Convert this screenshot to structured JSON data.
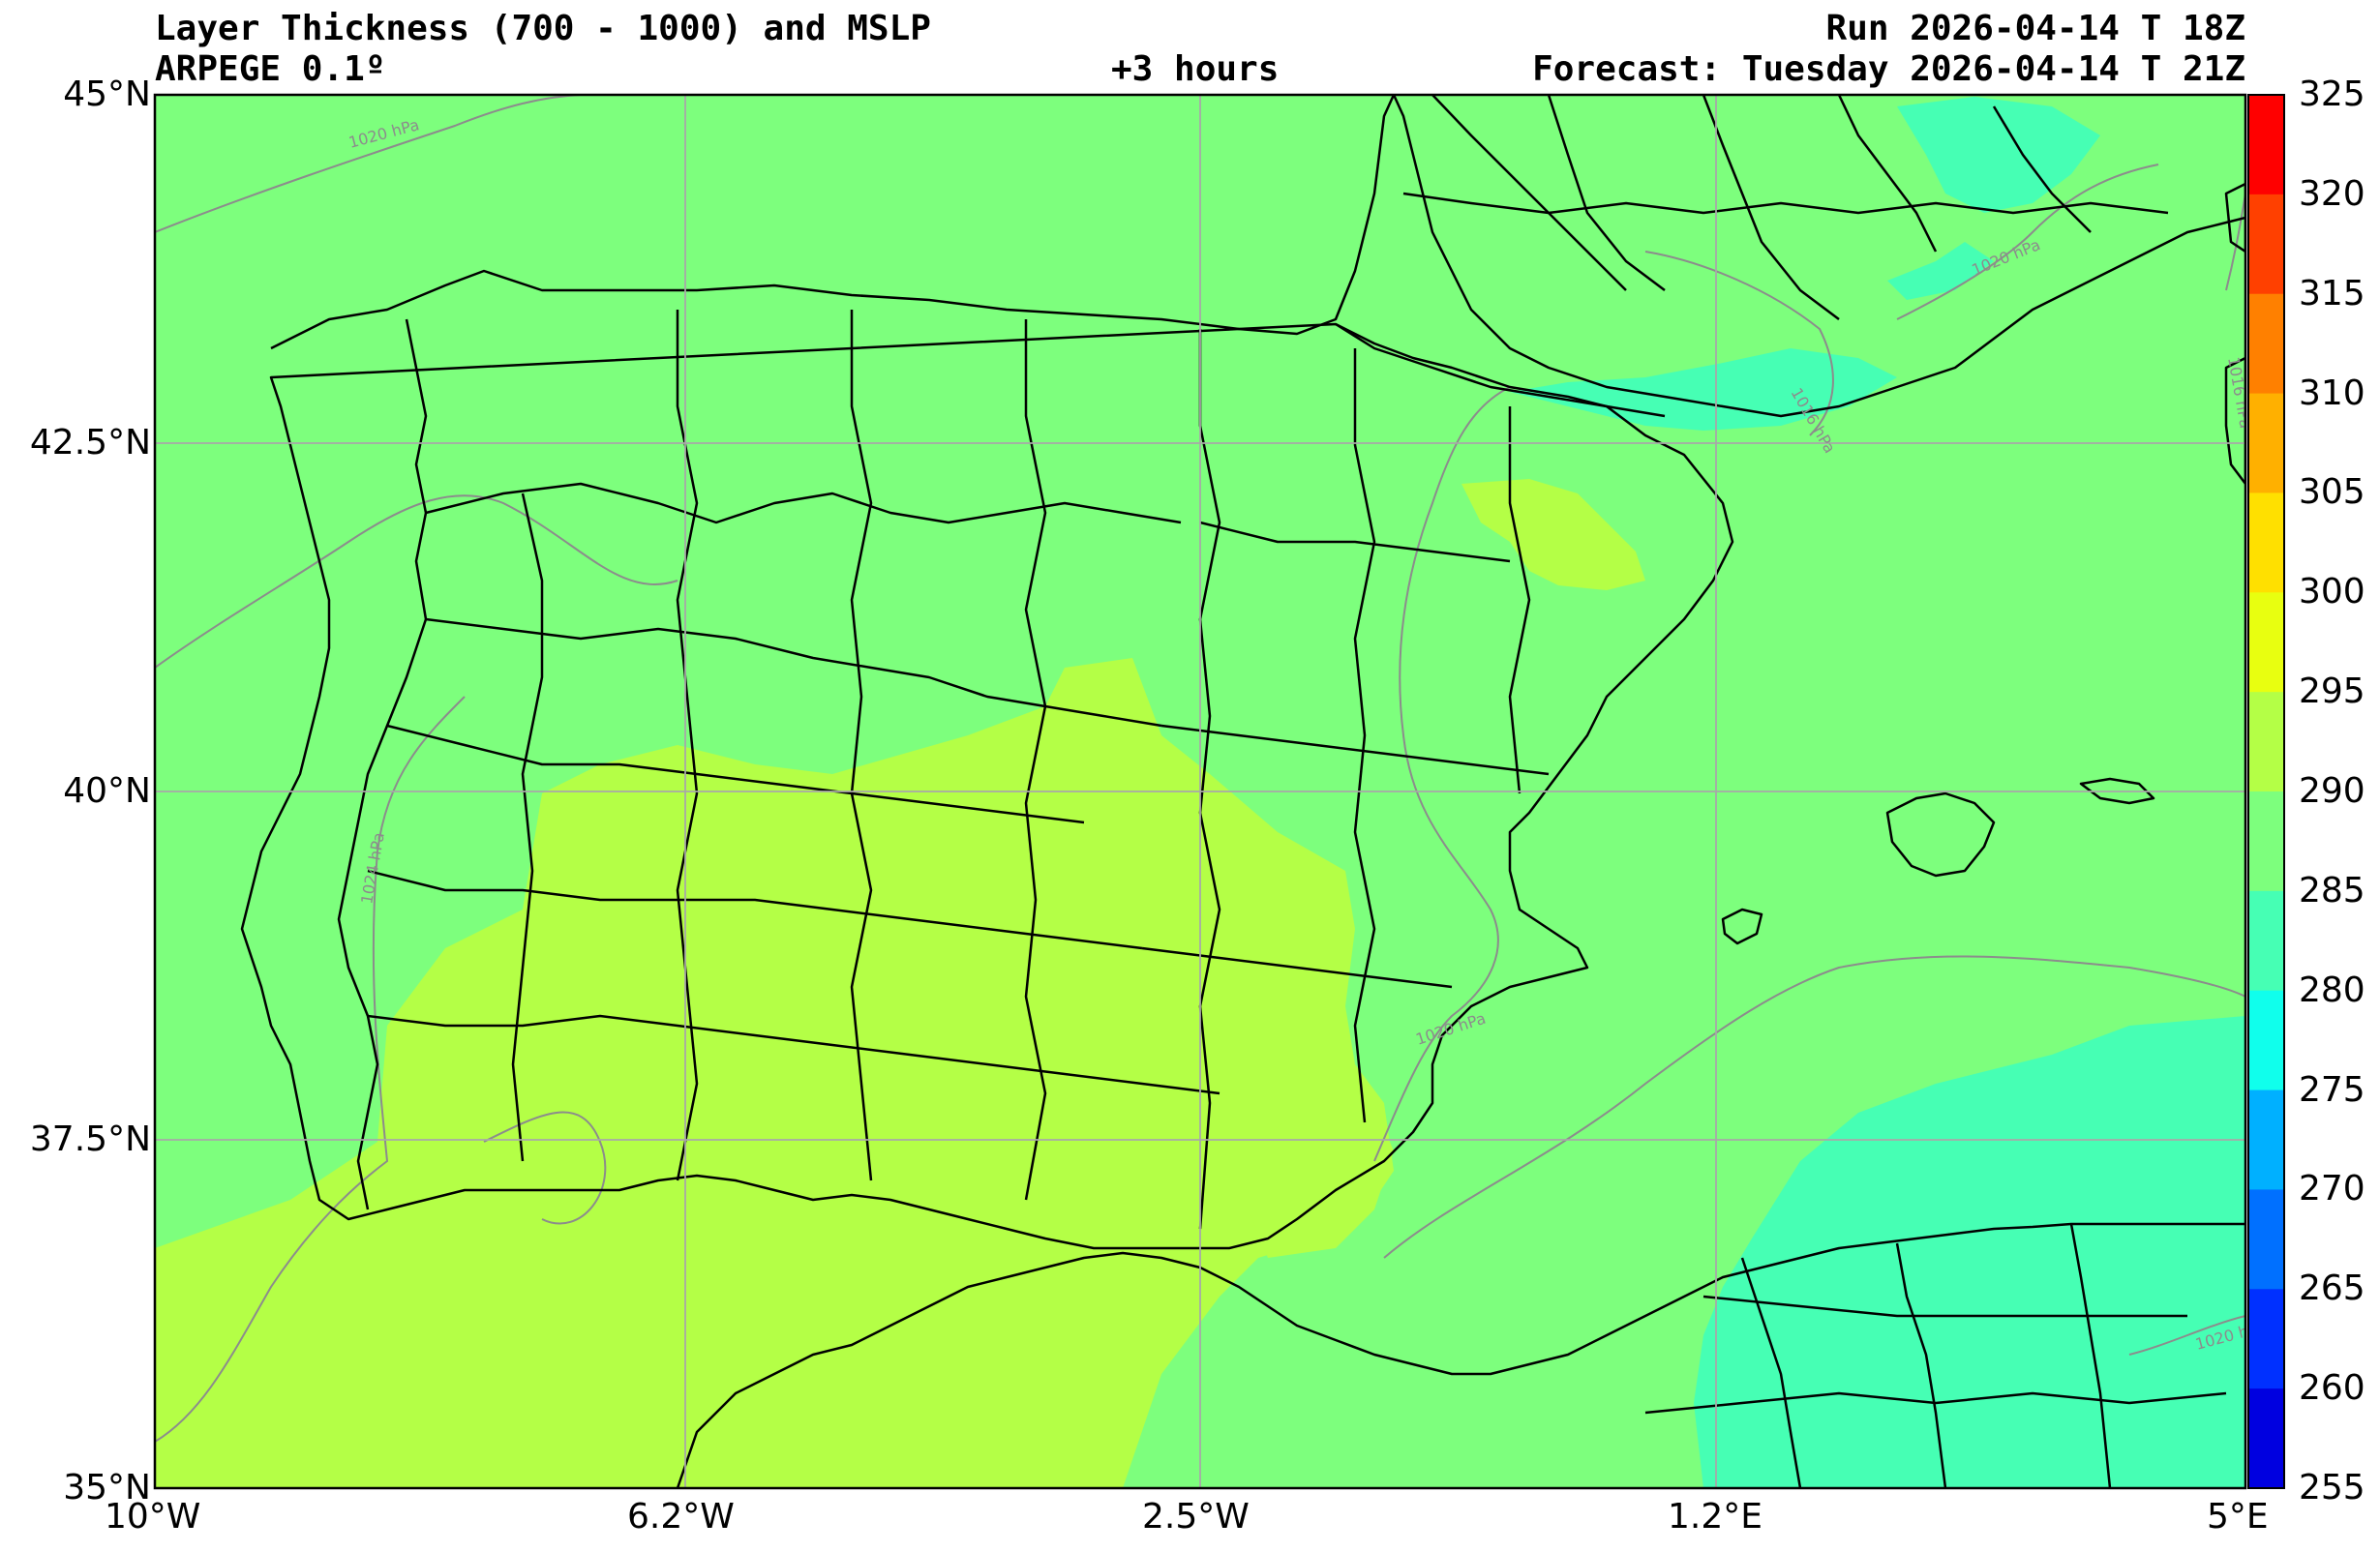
{
  "header": {
    "title": "Layer Thickness (700 - 1000) and MSLP",
    "model": "ARPEGE 0.1º",
    "lead_time": "+3 hours",
    "run": "Run 2026-04-14 T 18Z",
    "forecast": "Forecast: Tuesday 2026-04-14 T 21Z"
  },
  "axes": {
    "lat_labels": [
      "45°N",
      "42.5°N",
      "40°N",
      "37.5°N",
      "35°N"
    ],
    "lon_labels": [
      "10°W",
      "6.2°W",
      "2.5°W",
      "1.2°E",
      "5°E"
    ]
  },
  "colorbar": {
    "levels": [
      "325",
      "320",
      "315",
      "310",
      "305",
      "300",
      "295",
      "290",
      "285",
      "280",
      "275",
      "270",
      "265",
      "260",
      "255"
    ],
    "colors": [
      "#ff0000",
      "#ff4000",
      "#ff8000",
      "#ffb000",
      "#ffe000",
      "#e8ff10",
      "#b4ff46",
      "#7dff7d",
      "#46ffb4",
      "#10ffec",
      "#00b0ff",
      "#0070ff",
      "#0030ff",
      "#0000e0",
      "#00009e"
    ]
  },
  "isobar_labels": [
    "1020 hPa",
    "1024 hPa",
    "1020 hPa",
    "1020 hPa",
    "1016 hPa",
    "1016 hPa",
    "1020 hPa"
  ],
  "field_colors": {
    "ocean": "#7dff7d",
    "warm": "#b4ff46",
    "cool": "#46ffb4",
    "isobar": "#8c8c8c"
  }
}
